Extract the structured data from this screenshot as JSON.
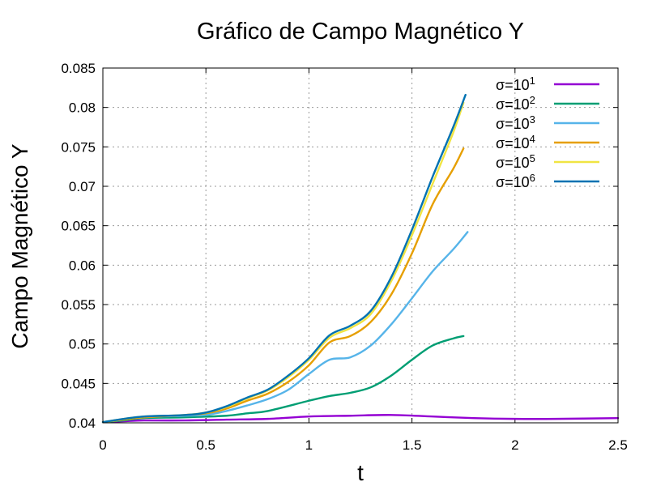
{
  "chart_data": {
    "type": "line",
    "title": "Gráfico de Campo Magnético Y",
    "xlabel": "t",
    "ylabel": "Campo Magnético Y",
    "xlim": [
      0,
      2.5
    ],
    "ylim": [
      0.04,
      0.085
    ],
    "xticks": [
      0,
      0.5,
      1,
      1.5,
      2,
      2.5
    ],
    "xtick_labels": [
      "0",
      "0.5",
      "1",
      "1.5",
      "2",
      "2.5"
    ],
    "yticks": [
      0.04,
      0.045,
      0.05,
      0.055,
      0.06,
      0.065,
      0.07,
      0.075,
      0.08,
      0.085
    ],
    "ytick_labels": [
      "0.04",
      "0.045",
      "0.05",
      "0.055",
      "0.06",
      "0.065",
      "0.07",
      "0.075",
      "0.08",
      "0.085"
    ],
    "grid": true,
    "legend_position": "top-right",
    "series": [
      {
        "name": "σ=10¹",
        "legend_base": "σ=10",
        "legend_exp": "1",
        "color": "#9400d3",
        "x": [
          0,
          0.1,
          0.2,
          0.4,
          0.6,
          0.8,
          1.0,
          1.2,
          1.4,
          1.6,
          1.8,
          2.0,
          2.2,
          2.5
        ],
        "y": [
          0.0401,
          0.0402,
          0.0403,
          0.0403,
          0.0404,
          0.0405,
          0.0408,
          0.0409,
          0.041,
          0.0408,
          0.0406,
          0.0405,
          0.0405,
          0.0406
        ]
      },
      {
        "name": "σ=10²",
        "legend_base": "σ=10",
        "legend_exp": "2",
        "color": "#009e73",
        "x": [
          0,
          0.1,
          0.2,
          0.4,
          0.6,
          0.7,
          0.8,
          1.0,
          1.1,
          1.2,
          1.3,
          1.4,
          1.5,
          1.6,
          1.7,
          1.75
        ],
        "y": [
          0.0401,
          0.0403,
          0.0406,
          0.0407,
          0.0409,
          0.0412,
          0.0415,
          0.0428,
          0.0434,
          0.0438,
          0.0445,
          0.046,
          0.048,
          0.0498,
          0.0507,
          0.051
        ]
      },
      {
        "name": "σ=10³",
        "legend_base": "σ=10",
        "legend_exp": "3",
        "color": "#56b4e9",
        "x": [
          0,
          0.1,
          0.2,
          0.4,
          0.5,
          0.6,
          0.7,
          0.8,
          0.9,
          1.0,
          1.1,
          1.2,
          1.3,
          1.4,
          1.5,
          1.6,
          1.7,
          1.77
        ],
        "y": [
          0.0401,
          0.0404,
          0.0407,
          0.0409,
          0.041,
          0.0415,
          0.0422,
          0.043,
          0.0442,
          0.0462,
          0.048,
          0.0483,
          0.0498,
          0.0525,
          0.0558,
          0.0592,
          0.062,
          0.0642
        ]
      },
      {
        "name": "σ=10⁴",
        "legend_base": "σ=10",
        "legend_exp": "4",
        "color": "#e69f00",
        "x": [
          0,
          0.1,
          0.2,
          0.4,
          0.5,
          0.6,
          0.7,
          0.8,
          0.9,
          1.0,
          1.1,
          1.2,
          1.3,
          1.4,
          1.5,
          1.6,
          1.7,
          1.75
        ],
        "y": [
          0.0401,
          0.0404,
          0.0407,
          0.041,
          0.0412,
          0.0418,
          0.0428,
          0.0437,
          0.0452,
          0.0473,
          0.0502,
          0.051,
          0.0528,
          0.0563,
          0.0615,
          0.0677,
          0.0722,
          0.0748
        ]
      },
      {
        "name": "σ=10⁵",
        "legend_base": "σ=10",
        "legend_exp": "5",
        "color": "#f0e442",
        "x": [
          0,
          0.1,
          0.2,
          0.4,
          0.5,
          0.6,
          0.7,
          0.8,
          0.9,
          1.0,
          1.1,
          1.2,
          1.3,
          1.4,
          1.5,
          1.6,
          1.7,
          1.75
        ],
        "y": [
          0.0401,
          0.0405,
          0.0408,
          0.041,
          0.0413,
          0.042,
          0.0431,
          0.0441,
          0.0458,
          0.048,
          0.0508,
          0.052,
          0.0538,
          0.058,
          0.0638,
          0.0703,
          0.0768,
          0.0806
        ]
      },
      {
        "name": "σ=10⁶",
        "legend_base": "σ=10",
        "legend_exp": "6",
        "color": "#0072b2",
        "x": [
          0,
          0.1,
          0.2,
          0.4,
          0.5,
          0.6,
          0.7,
          0.8,
          0.9,
          1.0,
          1.1,
          1.2,
          1.3,
          1.4,
          1.5,
          1.6,
          1.7,
          1.76
        ],
        "y": [
          0.0401,
          0.0405,
          0.0408,
          0.041,
          0.0413,
          0.0421,
          0.0432,
          0.0442,
          0.046,
          0.0482,
          0.0511,
          0.0523,
          0.0542,
          0.0585,
          0.0645,
          0.0712,
          0.0775,
          0.0816
        ]
      }
    ]
  }
}
